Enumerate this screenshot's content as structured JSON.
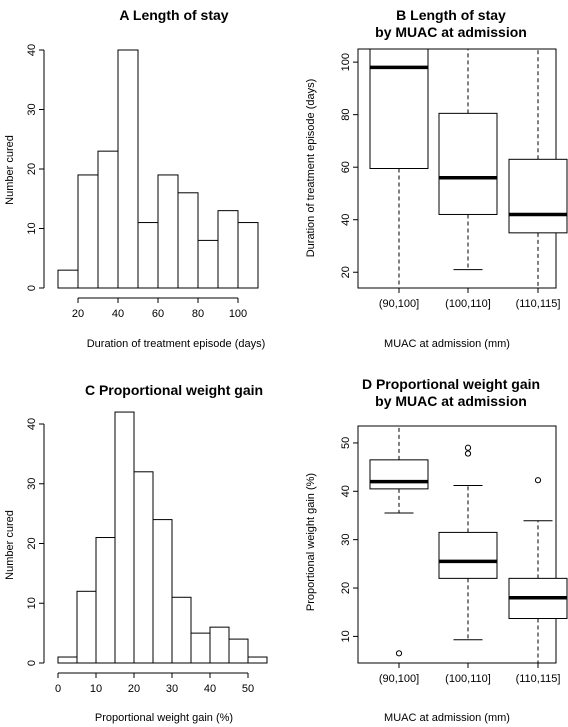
{
  "chart_data": [
    {
      "type": "bar",
      "panel": "A",
      "title": "A    Length of stay",
      "xlabel": "Duration of treatment episode (days)",
      "ylabel": "Number cured",
      "bin_edges": [
        10,
        20,
        30,
        40,
        50,
        60,
        70,
        80,
        90,
        100,
        110
      ],
      "values": [
        3,
        19,
        23,
        40,
        11,
        19,
        16,
        8,
        13,
        11
      ],
      "xlim": [
        10,
        110
      ],
      "ylim": [
        0,
        40
      ],
      "xticks": [
        20,
        40,
        60,
        80,
        100
      ],
      "yticks": [
        0,
        10,
        20,
        30,
        40
      ]
    },
    {
      "type": "box",
      "panel": "B",
      "title_lines": [
        "B    Length of stay",
        "by MUAC at admission"
      ],
      "xlabel": "MUAC at admission (mm)",
      "ylabel": "Duration of treatment episode (days)",
      "categories": [
        "(90,100]",
        "(100,110]",
        "(110,115]"
      ],
      "ylim": [
        14,
        105
      ],
      "yticks": [
        20,
        40,
        60,
        80,
        100
      ],
      "boxes": [
        {
          "min": 14,
          "q1": 59.5,
          "median": 98,
          "q3": 105,
          "max": 105,
          "outliers": []
        },
        {
          "min": 21,
          "q1": 42,
          "median": 56,
          "q3": 80.5,
          "max": 105,
          "outliers": []
        },
        {
          "min": 14,
          "q1": 35,
          "median": 42,
          "q3": 63,
          "max": 105,
          "outliers": []
        }
      ]
    },
    {
      "type": "bar",
      "panel": "C",
      "title": "C    Proportional weight gain",
      "xlabel": "Proportional weight gain (%)",
      "ylabel": "Number cured",
      "bin_edges": [
        0,
        5,
        10,
        15,
        20,
        25,
        30,
        35,
        40,
        45,
        50,
        55
      ],
      "values": [
        1,
        12,
        21,
        42,
        32,
        24,
        11,
        5,
        6,
        4,
        1
      ],
      "xlim": [
        0,
        55
      ],
      "ylim": [
        0,
        40
      ],
      "xticks": [
        0,
        10,
        20,
        30,
        40,
        50
      ],
      "yticks": [
        0,
        10,
        20,
        30,
        40
      ]
    },
    {
      "type": "box",
      "panel": "D",
      "title_lines": [
        "D    Proportional weight gain",
        "by MUAC at admission"
      ],
      "xlabel": "MUAC at admission (mm)",
      "ylabel": "Proportional weight gain (%)",
      "categories": [
        "(90,100]",
        "(100,110]",
        "(110,115]"
      ],
      "ylim": [
        4.5,
        53.5
      ],
      "yticks": [
        10,
        20,
        30,
        40,
        50
      ],
      "boxes": [
        {
          "min": 35.5,
          "q1": 40.5,
          "median": 42,
          "q3": 46.5,
          "max": 53.5,
          "outliers": [
            6.5
          ]
        },
        {
          "min": 9.3,
          "q1": 22,
          "median": 25.5,
          "q3": 31.5,
          "max": 41.2,
          "outliers": [
            47.8,
            49
          ]
        },
        {
          "min": 4.5,
          "q1": 13.7,
          "median": 18,
          "q3": 22,
          "max": 33.9,
          "outliers": [
            42.3
          ]
        }
      ]
    }
  ]
}
